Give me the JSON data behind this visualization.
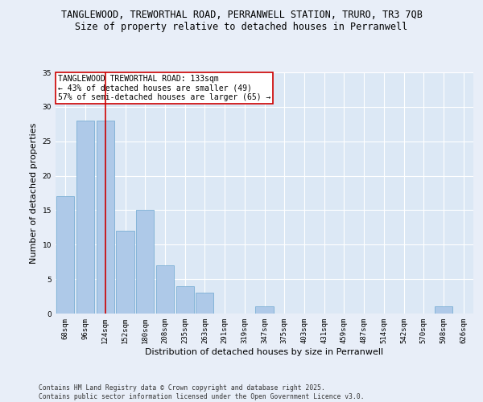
{
  "title_line1": "TANGLEWOOD, TREWORTHAL ROAD, PERRANWELL STATION, TRURO, TR3 7QB",
  "title_line2": "Size of property relative to detached houses in Perranwell",
  "xlabel": "Distribution of detached houses by size in Perranwell",
  "ylabel": "Number of detached properties",
  "categories": [
    "68sqm",
    "96sqm",
    "124sqm",
    "152sqm",
    "180sqm",
    "208sqm",
    "235sqm",
    "263sqm",
    "291sqm",
    "319sqm",
    "347sqm",
    "375sqm",
    "403sqm",
    "431sqm",
    "459sqm",
    "487sqm",
    "514sqm",
    "542sqm",
    "570sqm",
    "598sqm",
    "626sqm"
  ],
  "values": [
    17,
    28,
    28,
    12,
    15,
    7,
    4,
    3,
    0,
    0,
    1,
    0,
    0,
    0,
    0,
    0,
    0,
    0,
    0,
    1,
    0
  ],
  "bar_color": "#aec9e8",
  "bar_edge_color": "#7aafd4",
  "vline_x": 2,
  "vline_color": "#cc0000",
  "annotation_text": "TANGLEWOOD TREWORTHAL ROAD: 133sqm\n← 43% of detached houses are smaller (49)\n57% of semi-detached houses are larger (65) →",
  "annotation_box_edge": "#cc0000",
  "ylim": [
    0,
    35
  ],
  "yticks": [
    0,
    5,
    10,
    15,
    20,
    25,
    30,
    35
  ],
  "bg_color": "#e8eef8",
  "plot_bg_color": "#dce8f5",
  "grid_color": "#ffffff",
  "footer_text": "Contains HM Land Registry data © Crown copyright and database right 2025.\nContains public sector information licensed under the Open Government Licence v3.0.",
  "title_fontsize": 8.5,
  "subtitle_fontsize": 8.5,
  "tick_fontsize": 6.5,
  "label_fontsize": 8.0,
  "annotation_fontsize": 7.0,
  "footer_fontsize": 5.8
}
